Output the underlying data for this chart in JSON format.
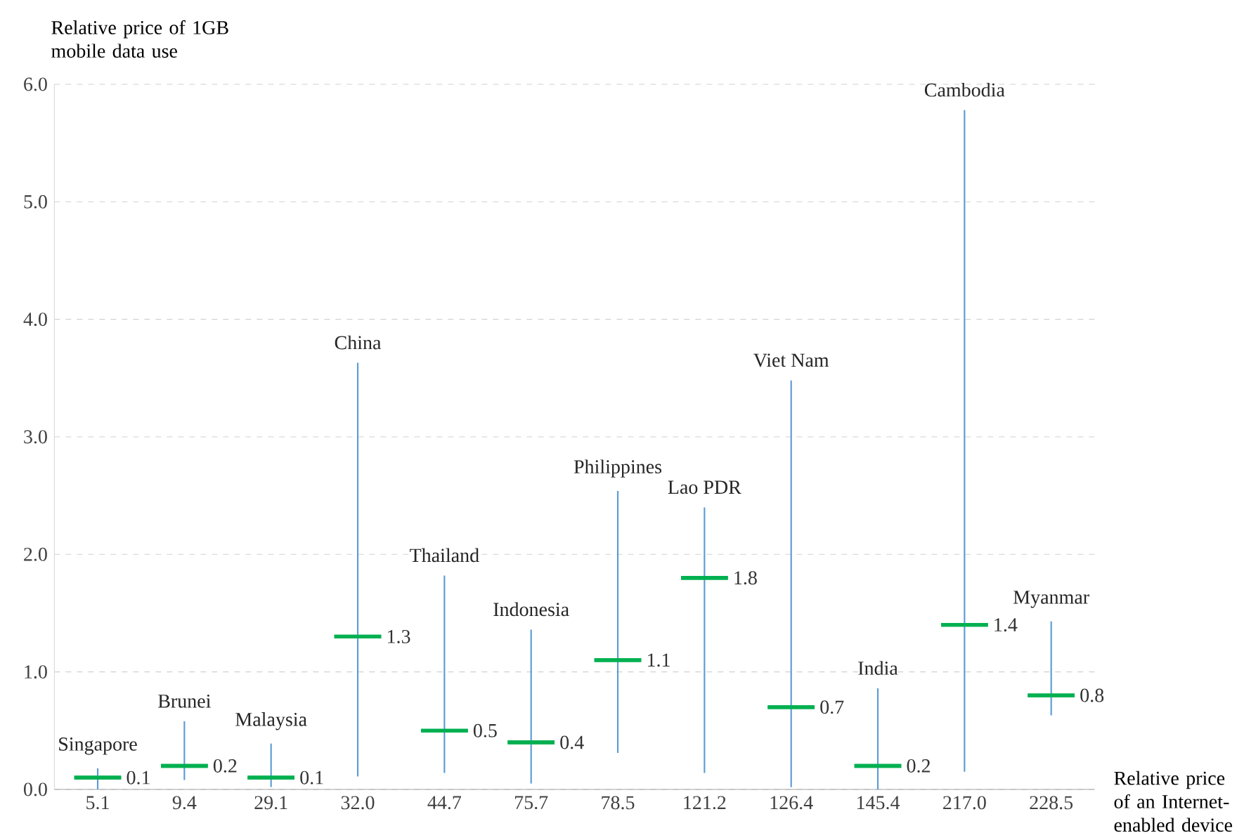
{
  "chart_data": {
    "type": "box",
    "xlabel": "Relative price of an Internet-enabled device",
    "ylabel": "Relative price of 1GB mobile data use",
    "categories": [
      "5.1",
      "9.4",
      "29.1",
      "32.0",
      "44.7",
      "75.7",
      "78.5",
      "121.2",
      "126.4",
      "145.4",
      "217.0",
      "228.5"
    ],
    "series": [
      {
        "color": "#00b050",
        "boxes": [
          {
            "low": 0,
            "q1": 0.1,
            "median": 0.1,
            "q3": 0.1,
            "high": 0.18
          },
          {
            "low": 0.08,
            "q1": 0.2,
            "median": 0.2,
            "q3": 0.2,
            "high": 0.58
          },
          {
            "low": 0.02,
            "q1": 0.1,
            "median": 0.1,
            "q3": 0.1,
            "high": 0.39
          },
          {
            "low": 0.11,
            "q1": 1.3,
            "median": 1.3,
            "q3": 1.3,
            "high": 3.63
          },
          {
            "low": 0.14,
            "q1": 0.5,
            "median": 0.5,
            "q3": 0.5,
            "high": 1.82
          },
          {
            "low": 0.05,
            "q1": 0.4,
            "median": 0.4,
            "q3": 0.4,
            "high": 1.36
          },
          {
            "low": 0.31,
            "q1": 1.1,
            "median": 1.1,
            "q3": 1.1,
            "high": 2.54
          },
          {
            "low": 0.14,
            "q1": 1.8,
            "median": 1.8,
            "q3": 1.8,
            "high": 2.4
          },
          {
            "low": 0.02,
            "q1": 0.7,
            "median": 0.7,
            "q3": 0.7,
            "high": 3.48
          },
          {
            "low": 0,
            "q1": 0.2,
            "median": 0.2,
            "q3": 0.2,
            "high": 0.86
          },
          {
            "low": 0.15,
            "q1": 1.4,
            "median": 1.4,
            "q3": 1.4,
            "high": 5.78
          },
          {
            "low": 0.63,
            "q1": 0.8,
            "median": 0.8,
            "q3": 0.8,
            "high": 1.43
          }
        ]
      }
    ],
    "ylim": [
      0,
      6
    ],
    "yticks": [
      {
        "value": 0,
        "label": "0.0"
      },
      {
        "value": 1,
        "label": "1.0"
      },
      {
        "value": 2,
        "label": "2.0"
      },
      {
        "value": 3,
        "label": "3.0"
      },
      {
        "value": 4,
        "label": "4.0"
      },
      {
        "value": 5,
        "label": "5.0"
      },
      {
        "value": 6,
        "label": "6.0"
      }
    ],
    "grid": "y",
    "annotations": [
      {
        "text": "Singapore",
        "x": "5.1",
        "y": 0.18
      },
      {
        "text": "Brunei",
        "x": "9.4",
        "y": 0.58
      },
      {
        "text": "Malaysia",
        "x": "29.1",
        "y": 0.39
      },
      {
        "text": "China",
        "x": "32.0",
        "y": 3.63
      },
      {
        "text": "Thailand",
        "x": "44.7",
        "y": 1.82
      },
      {
        "text": "Indonesia",
        "x": "75.7",
        "y": 1.36
      },
      {
        "text": "Philippines",
        "x": "78.5",
        "y": 2.54
      },
      {
        "text": "Lao PDR",
        "x": "121.2",
        "y": 2.4
      },
      {
        "text": "Viet Nam",
        "x": "126.4",
        "y": 3.48
      },
      {
        "text": "India",
        "x": "145.4",
        "y": 0.86
      },
      {
        "text": "Cambodia",
        "x": "217.0",
        "y": 5.78
      },
      {
        "text": "Myanmar",
        "x": "228.5",
        "y": 1.43
      },
      {
        "text": "0.1",
        "x": "5.1",
        "y": 0.1
      },
      {
        "text": "0.2",
        "x": "9.4",
        "y": 0.2
      },
      {
        "text": "0.1",
        "x": "29.1",
        "y": 0.1
      },
      {
        "text": "1.3",
        "x": "32.0",
        "y": 1.3
      },
      {
        "text": "0.5",
        "x": "44.7",
        "y": 0.5
      },
      {
        "text": "0.4",
        "x": "75.7",
        "y": 0.4
      },
      {
        "text": "1.1",
        "x": "78.5",
        "y": 1.1
      },
      {
        "text": "1.8",
        "x": "121.2",
        "y": 1.8
      },
      {
        "text": "0.7",
        "x": "126.4",
        "y": 0.7
      },
      {
        "text": "0.2",
        "x": "145.4",
        "y": 0.2
      },
      {
        "text": "1.4",
        "x": "217.0",
        "y": 1.4
      },
      {
        "text": "0.8",
        "x": "228.5",
        "y": 0.8
      }
    ]
  }
}
